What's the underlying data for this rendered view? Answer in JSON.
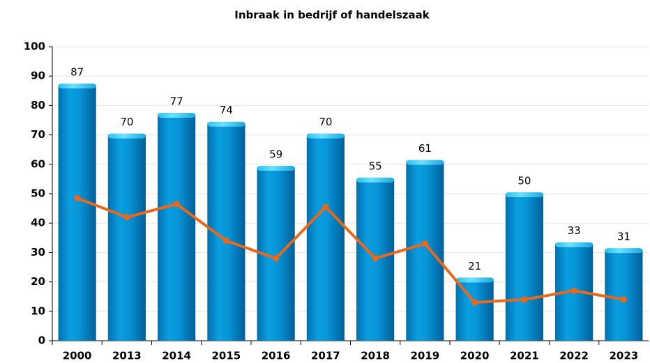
{
  "chart_data": {
    "type": "bar",
    "title": "Inbraak in bedrijf of handelszaak",
    "categories": [
      "2000",
      "2013",
      "2014",
      "2015",
      "2016",
      "2017",
      "2018",
      "2019",
      "2020",
      "2021",
      "2022",
      "2023"
    ],
    "series": [
      {
        "type": "bar",
        "color": "#0288d1",
        "values": [
          87,
          70,
          77,
          74,
          59,
          70,
          55,
          61,
          21,
          50,
          33,
          31
        ]
      },
      {
        "type": "line",
        "color": "#e8681c",
        "values": [
          48.5,
          42,
          46.5,
          34,
          28,
          45.5,
          28,
          33,
          13,
          14,
          17,
          14
        ]
      }
    ],
    "ylim": [
      0,
      100
    ],
    "yticks": [
      0,
      10,
      20,
      30,
      40,
      50,
      60,
      70,
      80,
      90,
      100
    ],
    "grid": true
  }
}
